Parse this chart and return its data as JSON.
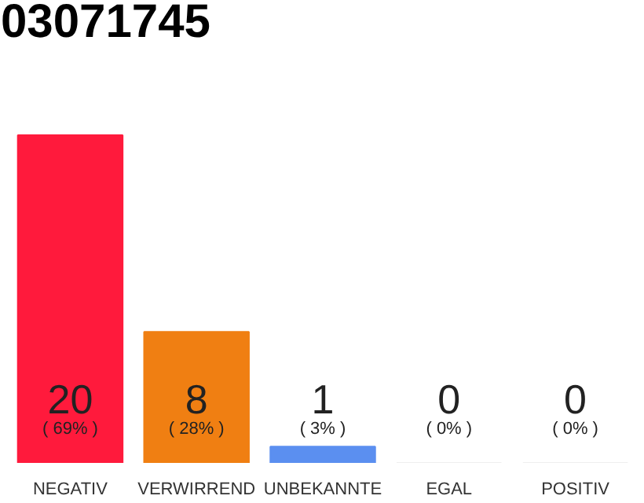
{
  "chart_data": {
    "type": "bar",
    "title": "03071745",
    "categories": [
      "NEGATIV",
      "VERWIRREND",
      "UNBEKANNTE",
      "EGAL",
      "POSITIV"
    ],
    "values": [
      20,
      8,
      1,
      0,
      0
    ],
    "colors": [
      "#ff1a3c",
      "#f07f12",
      "#5b8ff0",
      "#eeeeee",
      "#eeeeee"
    ],
    "data_labels": true,
    "annotations": [
      "( 69% )",
      "( 28% )",
      "( 3% )",
      "( 0% )",
      "( 0% )"
    ],
    "grid": false
  }
}
